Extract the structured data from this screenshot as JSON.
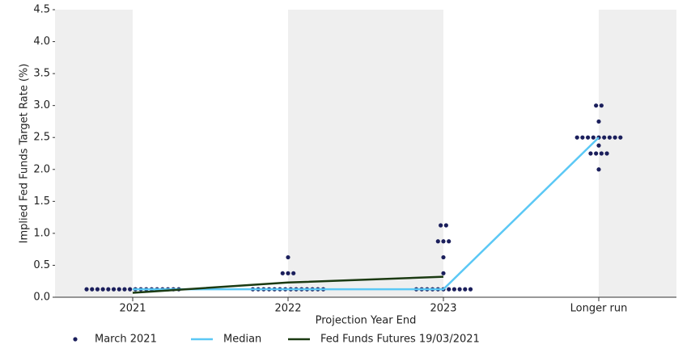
{
  "chart_data": {
    "type": "dot",
    "y_axis_label": "Implied Fed Funds Target Rate (%)",
    "x_axis_label": "Projection Year End",
    "categories": [
      "2021",
      "2022",
      "2023",
      "Longer run"
    ],
    "ylim": [
      0,
      4.5
    ],
    "yticks": [
      {
        "value": 0,
        "label": "0.0"
      },
      0.5,
      {
        "value": 1,
        "label": "1.0"
      },
      1.5,
      {
        "value": 2,
        "label": "2.0"
      },
      2.5,
      {
        "value": 3,
        "label": "3.0"
      },
      3.5,
      {
        "value": 4,
        "label": "4.0"
      },
      4.5
    ],
    "series": [
      {
        "name": "March 2021",
        "color": "#1b1f5c",
        "kind": "dots",
        "values": [
          [
            0.125,
            0.125,
            0.125,
            0.125,
            0.125,
            0.125,
            0.125,
            0.125,
            0.125,
            0.125,
            0.125,
            0.125,
            0.125,
            0.125,
            0.125,
            0.125,
            0.125,
            0.125
          ],
          [
            0.125,
            0.125,
            0.125,
            0.125,
            0.125,
            0.125,
            0.125,
            0.125,
            0.125,
            0.125,
            0.125,
            0.125,
            0.125,
            0.125,
            0.375,
            0.375,
            0.375,
            0.625
          ],
          [
            0.125,
            0.125,
            0.125,
            0.125,
            0.125,
            0.125,
            0.125,
            0.125,
            0.125,
            0.125,
            0.125,
            0.375,
            0.625,
            0.875,
            0.875,
            0.875,
            1.125,
            1.125
          ],
          [
            2.0,
            2.25,
            2.25,
            2.25,
            2.25,
            2.375,
            2.5,
            2.5,
            2.5,
            2.5,
            2.5,
            2.5,
            2.5,
            2.5,
            2.5,
            2.75,
            3.0,
            3.0
          ]
        ]
      },
      {
        "name": "Median",
        "color": "#5bc8f5",
        "kind": "line",
        "values": [
          0.125,
          0.125,
          0.125,
          2.5
        ]
      },
      {
        "name": "Fed Funds Futures 19/03/2021",
        "color": "#1b3a12",
        "kind": "line",
        "values": [
          0.07,
          0.23,
          0.32,
          null
        ]
      }
    ]
  }
}
